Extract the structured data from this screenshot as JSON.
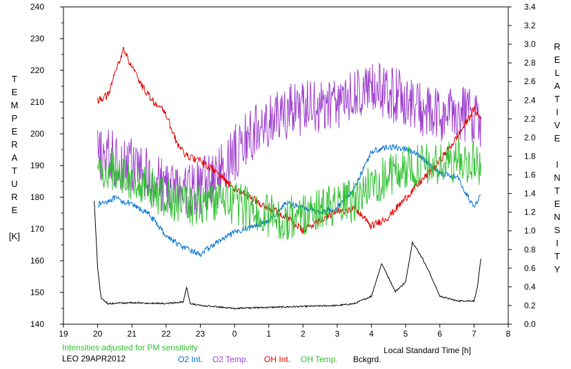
{
  "chart_data": {
    "type": "line",
    "title": "",
    "station_date": "LEO 29APR2012",
    "note": "Intensities adjusted for PM sensitivity",
    "xlabel": "Local Standard Time [h]",
    "ylabel_left_letters": [
      "T",
      "E",
      "M",
      "P",
      "E",
      "R",
      "A",
      "T",
      "U",
      "R",
      "E",
      "",
      "[K]"
    ],
    "ylabel_right_letters": [
      "R",
      "E",
      "L",
      "A",
      "T",
      "I",
      "V",
      "E",
      "",
      "I",
      "N",
      "T",
      "E",
      "N",
      "S",
      "I",
      "T",
      "Y"
    ],
    "x_ticks": [
      "19",
      "20",
      "21",
      "22",
      "23",
      "0",
      "1",
      "2",
      "3",
      "4",
      "5",
      "6",
      "7",
      "8"
    ],
    "xlim": [
      19,
      32
    ],
    "y_left_ticks": [
      "140",
      "150",
      "160",
      "170",
      "180",
      "190",
      "200",
      "210",
      "220",
      "230",
      "240"
    ],
    "ylim_left": [
      140,
      240
    ],
    "y_right_ticks": [
      "0.0",
      "0.2",
      "0.4",
      "0.6",
      "0.8",
      "1.0",
      "1.2",
      "1.4",
      "1.6",
      "1.8",
      "2.0",
      "2.2",
      "2.4",
      "2.6",
      "2.8",
      "3.0",
      "3.2",
      "3.4"
    ],
    "ylim_right": [
      0,
      3.4
    ],
    "grid": false,
    "legend_position": "bottom",
    "x_note": "x values are hours of local standard time; values after midnight are written as 24-31",
    "series": [
      {
        "name": "O2 Int.",
        "axis": "right",
        "color": "#0070d0",
        "x": [
          20.0,
          20.5,
          21.0,
          21.5,
          22.0,
          22.5,
          23.0,
          23.5,
          24.0,
          24.5,
          25.0,
          25.5,
          26.0,
          26.5,
          27.0,
          27.5,
          28.0,
          28.5,
          29.0,
          29.5,
          30.0,
          30.5,
          31.0,
          31.2
        ],
        "y": [
          1.28,
          1.35,
          1.28,
          1.18,
          0.95,
          0.82,
          0.75,
          0.88,
          0.98,
          1.05,
          1.1,
          1.3,
          1.25,
          1.2,
          1.25,
          1.45,
          1.85,
          1.9,
          1.88,
          1.78,
          1.62,
          1.58,
          1.25,
          1.4
        ]
      },
      {
        "name": "O2 Temp.",
        "axis": "left",
        "color": "#a040d0",
        "x": [
          20.0,
          20.5,
          21.0,
          21.5,
          22.0,
          22.5,
          23.0,
          23.5,
          24.0,
          24.5,
          25.0,
          25.5,
          26.0,
          26.5,
          27.0,
          27.5,
          28.0,
          28.5,
          29.0,
          29.5,
          30.0,
          30.5,
          31.0,
          31.2
        ],
        "y": [
          193,
          192,
          190,
          186,
          184,
          182,
          183,
          187,
          194,
          200,
          203,
          207,
          208,
          208,
          210,
          212,
          214,
          213,
          211,
          207,
          205,
          207,
          206,
          204
        ]
      },
      {
        "name": "OH Int.",
        "axis": "right",
        "color": "#e00000",
        "x": [
          20.0,
          20.3,
          20.75,
          21.0,
          21.3,
          21.6,
          22.0,
          22.3,
          22.6,
          23.0,
          23.5,
          24.0,
          24.5,
          25.0,
          25.5,
          26.0,
          26.5,
          27.0,
          27.5,
          28.0,
          28.5,
          29.0,
          29.5,
          30.0,
          30.5,
          31.0,
          31.2
        ],
        "y": [
          2.4,
          2.45,
          2.95,
          2.75,
          2.55,
          2.4,
          2.25,
          1.95,
          1.8,
          1.75,
          1.62,
          1.45,
          1.35,
          1.25,
          1.15,
          1.0,
          1.12,
          1.2,
          1.25,
          1.05,
          1.15,
          1.35,
          1.55,
          1.75,
          2.0,
          2.3,
          2.2
        ]
      },
      {
        "name": "OH Temp.",
        "axis": "left",
        "color": "#30c030",
        "x": [
          20.0,
          20.5,
          21.0,
          21.5,
          22.0,
          22.5,
          23.0,
          23.5,
          24.0,
          24.5,
          25.0,
          25.5,
          26.0,
          26.5,
          27.0,
          27.5,
          28.0,
          28.5,
          29.0,
          29.5,
          30.0,
          30.5,
          31.0,
          31.2
        ],
        "y": [
          188,
          189,
          186,
          183,
          180,
          178,
          178,
          179,
          178,
          176,
          174,
          173,
          175,
          176,
          177,
          179,
          184,
          187,
          189,
          190,
          190,
          192,
          191,
          190
        ]
      },
      {
        "name": "Bckgrd.",
        "axis": "right",
        "color": "#000000",
        "x": [
          19.9,
          20.0,
          20.1,
          20.3,
          21.0,
          22.0,
          22.5,
          22.6,
          22.7,
          23.0,
          24.0,
          25.0,
          26.0,
          27.0,
          27.5,
          28.0,
          28.3,
          28.7,
          29.0,
          29.2,
          29.5,
          29.7,
          30.0,
          30.5,
          31.0,
          31.1,
          31.2
        ],
        "y": [
          1.32,
          0.6,
          0.28,
          0.22,
          0.23,
          0.22,
          0.24,
          0.4,
          0.22,
          0.2,
          0.17,
          0.18,
          0.19,
          0.2,
          0.22,
          0.3,
          0.65,
          0.35,
          0.45,
          0.88,
          0.7,
          0.55,
          0.3,
          0.25,
          0.25,
          0.4,
          0.7
        ]
      }
    ]
  }
}
